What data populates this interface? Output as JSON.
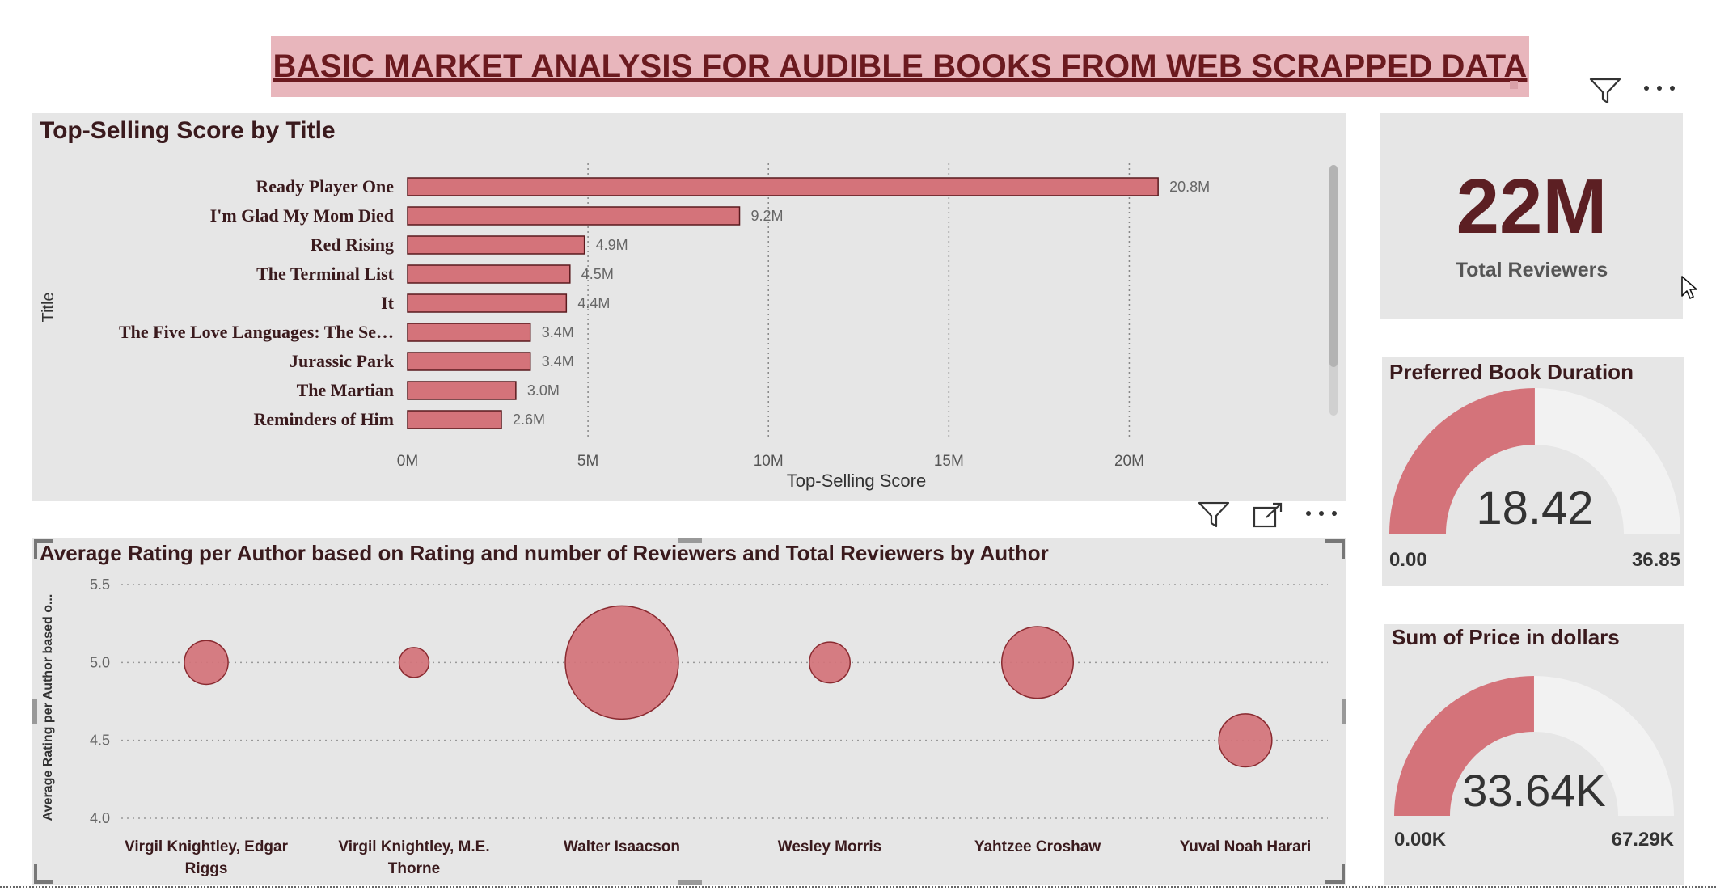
{
  "header": {
    "title": "BASIC MARKET ANALYSIS FOR AUDIBLE BOOKS FROM WEB SCRAPPED DATA"
  },
  "colors": {
    "accent": "#d4737a",
    "accent_dark": "#8a2a30",
    "panel_bg": "#e6e6e6",
    "title_banner_bg": "#e8b6bc",
    "kpi_value": "#5c1f23",
    "gauge_track": "#f2f2f2"
  },
  "icons": {
    "filter": "filter-icon",
    "more": "more-options-icon",
    "focus": "focus-mode-icon",
    "cursor": "mouse-cursor-icon"
  },
  "bar_chart": {
    "title": "Top-Selling Score by Title",
    "chart_data": {
      "type": "bar",
      "orientation": "horizontal",
      "title": "Top-Selling Score by Title",
      "xlabel": "Top-Selling Score",
      "ylabel": "Title",
      "categories": [
        "Ready Player One",
        "I'm Glad My Mom Died",
        "Red Rising",
        "The Terminal List",
        "It",
        "The Five Love Languages: The Se…",
        "Jurassic Park",
        "The Martian",
        "Reminders of Him"
      ],
      "values": [
        20.8,
        9.2,
        4.9,
        4.5,
        4.4,
        3.4,
        3.4,
        3.0,
        2.6
      ],
      "value_labels": [
        "20.8M",
        "9.2M",
        "4.9M",
        "4.5M",
        "4.4M",
        "3.4M",
        "3.4M",
        "3.0M",
        "2.6M"
      ],
      "value_unit": "M",
      "xlim": [
        0,
        22.5
      ],
      "xticks": [
        0,
        5,
        10,
        15,
        20
      ],
      "xtick_labels": [
        "0M",
        "5M",
        "10M",
        "15M",
        "20M"
      ],
      "grid": true
    }
  },
  "bubble_chart": {
    "title": "Average Rating per Author based on Rating and number of Reviewers and Total Reviewers by Author",
    "chart_data": {
      "type": "scatter",
      "title": "Average Rating per Author based on Rating and number of Reviewers and Total Reviewers by Author",
      "ylabel": "Average Rating per Author based o...",
      "ylim": [
        4.0,
        5.5
      ],
      "yticks": [
        4.0,
        4.5,
        5.0,
        5.5
      ],
      "ytick_labels": [
        "4.0",
        "4.5",
        "5.0",
        "5.5"
      ],
      "categories": [
        [
          "Virgil Knightley, Edgar",
          "Riggs"
        ],
        [
          "Virgil Knightley, M.E.",
          "Thorne"
        ],
        [
          "Walter Isaacson"
        ],
        [
          "Wesley Morris"
        ],
        [
          "Yahtzee Croshaw"
        ],
        [
          "Yuval Noah Harari"
        ]
      ],
      "y": [
        5.0,
        5.0,
        5.0,
        5.0,
        5.0,
        4.5
      ],
      "size_relative": [
        0.15,
        0.07,
        1.0,
        0.13,
        0.4,
        0.22
      ],
      "grid": true
    }
  },
  "kpi": {
    "value": "22M",
    "label": "Total Reviewers"
  },
  "gauge_duration": {
    "title": "Preferred Book Duration",
    "value": 18.42,
    "value_label": "18.42",
    "min": 0,
    "max": 36.85,
    "min_label": "0.00",
    "max_label": "36.85"
  },
  "gauge_price": {
    "title": "Sum of Price in dollars",
    "value": 33.64,
    "value_label": "33.64K",
    "min": 0,
    "max": 67.29,
    "min_label": "0.00K",
    "max_label": "67.29K"
  }
}
